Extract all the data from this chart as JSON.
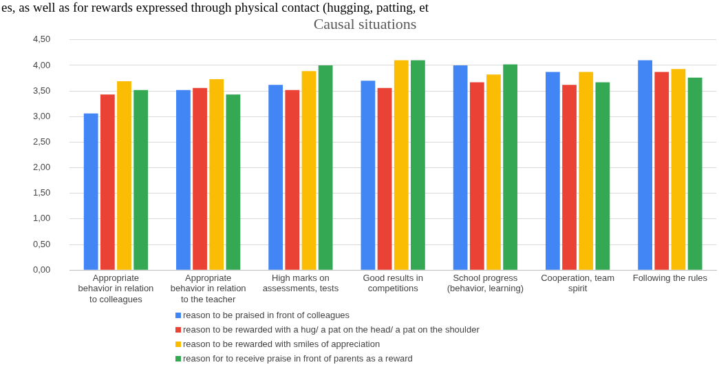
{
  "chart_data": {
    "type": "bar",
    "title": "Causal situations",
    "annotations": [
      "es, as well as for rewards expressed through physical contact (hugging, patting, et"
    ],
    "categories": [
      "Appropriate behavior in relation to colleagues",
      "Appropriate behavior in relation to the teacher",
      "High marks on assessments, tests",
      "Good results in competitions",
      "School progress (behavior, learning)",
      "Cooperation, team spirit",
      "Following the rules"
    ],
    "series": [
      {
        "name": "reason to be praised in front of colleagues",
        "color": "#4285f4",
        "values": [
          3.06,
          3.52,
          3.62,
          3.7,
          4.0,
          3.87,
          4.1
        ]
      },
      {
        "name": "reason to be rewarded with a hug/ a pat on the head/ a pat on the shoulder",
        "color": "#ea4335",
        "values": [
          3.43,
          3.56,
          3.52,
          3.56,
          3.67,
          3.62,
          3.87
        ]
      },
      {
        "name": "reason to be rewarded with smiles of appreciation",
        "color": "#fbbc04",
        "values": [
          3.69,
          3.73,
          3.89,
          4.1,
          3.82,
          3.87,
          3.93
        ]
      },
      {
        "name": "reason for to receive praise in front of parents as a reward",
        "color": "#34a853",
        "values": [
          3.52,
          3.43,
          4.0,
          4.1,
          4.02,
          3.67,
          3.76
        ]
      }
    ],
    "ylim": [
      0,
      4.5
    ],
    "yticks": [
      {
        "value": 0,
        "label": "0,00"
      },
      {
        "value": 0.5,
        "label": "0,50"
      },
      {
        "value": 1,
        "label": "1,00"
      },
      {
        "value": 1.5,
        "label": "1,50"
      },
      {
        "value": 2,
        "label": "2,00"
      },
      {
        "value": 2.5,
        "label": "2,50"
      },
      {
        "value": 3,
        "label": "3,00"
      },
      {
        "value": 3.5,
        "label": "3,50"
      },
      {
        "value": 4,
        "label": "4,00"
      },
      {
        "value": 4.5,
        "label": "4,50"
      }
    ],
    "grid": "y",
    "legend": "bottom"
  }
}
